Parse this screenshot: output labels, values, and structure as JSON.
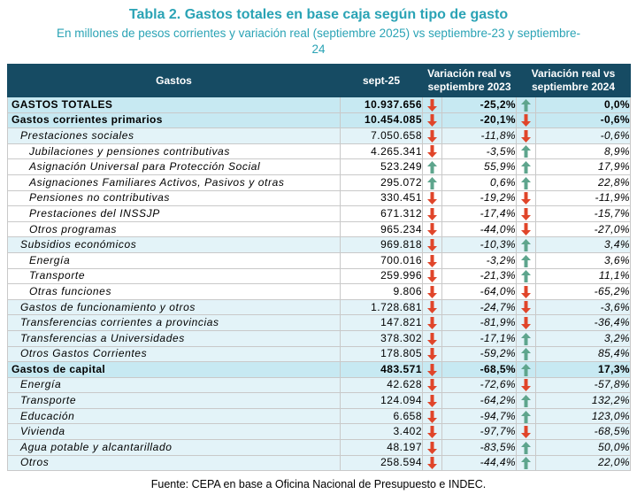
{
  "title": "Tabla 2. Gastos totales en base caja según tipo de gasto",
  "subtitle": "En millones de pesos corrientes y variación real (septiembre 2025) vs septiembre-23 y septiembre-24",
  "headers": {
    "gastos": "Gastos",
    "sept": "sept-25",
    "var23": "Variación real vs septiembre 2023",
    "var24": "Variación real vs septiembre 2024"
  },
  "colors": {
    "up": "#5ea58d",
    "down": "#e0452a",
    "header_bg": "#164b63"
  },
  "rows": [
    {
      "name": "GASTOS TOTALES",
      "value": "10.937.656",
      "dir23": "down",
      "var23": "-25,2%",
      "dir24": "up",
      "var24": "0,0%",
      "level": 0
    },
    {
      "name": "Gastos corrientes primarios",
      "value": "10.454.085",
      "dir23": "down",
      "var23": "-20,1%",
      "dir24": "down",
      "var24": "-0,6%",
      "level": 0
    },
    {
      "name": "Prestaciones sociales",
      "value": "7.050.658",
      "dir23": "down",
      "var23": "-11,8%",
      "dir24": "down",
      "var24": "-0,6%",
      "level": 1
    },
    {
      "name": "Jubilaciones y pensiones contributivas",
      "value": "4.265.341",
      "dir23": "down",
      "var23": "-3,5%",
      "dir24": "up",
      "var24": "8,9%",
      "level": 2
    },
    {
      "name": "Asignación Universal para Protección Social",
      "value": "523.249",
      "dir23": "up",
      "var23": "55,9%",
      "dir24": "up",
      "var24": "17,9%",
      "level": 2
    },
    {
      "name": "Asignaciones Familiares Activos, Pasivos y otras",
      "value": "295.072",
      "dir23": "up",
      "var23": "0,6%",
      "dir24": "up",
      "var24": "22,8%",
      "level": 2
    },
    {
      "name": "Pensiones no contributivas",
      "value": "330.451",
      "dir23": "down",
      "var23": "-19,2%",
      "dir24": "down",
      "var24": "-11,9%",
      "level": 2
    },
    {
      "name": "Prestaciones del INSSJP",
      "value": "671.312",
      "dir23": "down",
      "var23": "-17,4%",
      "dir24": "down",
      "var24": "-15,7%",
      "level": 2
    },
    {
      "name": "Otros programas",
      "value": "965.234",
      "dir23": "down",
      "var23": "-44,0%",
      "dir24": "down",
      "var24": "-27,0%",
      "level": 2
    },
    {
      "name": "Subsidios económicos",
      "value": "969.818",
      "dir23": "down",
      "var23": "-10,3%",
      "dir24": "up",
      "var24": "3,4%",
      "level": 1
    },
    {
      "name": "Energía",
      "value": "700.016",
      "dir23": "down",
      "var23": "-3,2%",
      "dir24": "up",
      "var24": "3,6%",
      "level": 2
    },
    {
      "name": "Transporte",
      "value": "259.996",
      "dir23": "down",
      "var23": "-21,3%",
      "dir24": "up",
      "var24": "11,1%",
      "level": 2
    },
    {
      "name": "Otras funciones",
      "value": "9.806",
      "dir23": "down",
      "var23": "-64,0%",
      "dir24": "down",
      "var24": "-65,2%",
      "level": 2
    },
    {
      "name": "Gastos de funcionamiento y otros",
      "value": "1.728.681",
      "dir23": "down",
      "var23": "-24,7%",
      "dir24": "down",
      "var24": "-3,6%",
      "level": 1
    },
    {
      "name": "Transferencias corrientes a provincias",
      "value": "147.821",
      "dir23": "down",
      "var23": "-81,9%",
      "dir24": "down",
      "var24": "-36,4%",
      "level": 1
    },
    {
      "name": "Transferencias a Universidades",
      "value": "378.302",
      "dir23": "down",
      "var23": "-17,1%",
      "dir24": "up",
      "var24": "3,2%",
      "level": 1
    },
    {
      "name": "Otros Gastos Corrientes",
      "value": "178.805",
      "dir23": "down",
      "var23": "-59,2%",
      "dir24": "up",
      "var24": "85,4%",
      "level": 1
    },
    {
      "name": "Gastos de capital",
      "value": "483.571",
      "dir23": "down",
      "var23": "-68,5%",
      "dir24": "up",
      "var24": "17,3%",
      "level": 0
    },
    {
      "name": "Energía",
      "value": "42.628",
      "dir23": "down",
      "var23": "-72,6%",
      "dir24": "down",
      "var24": "-57,8%",
      "level": 1
    },
    {
      "name": "Transporte",
      "value": "124.094",
      "dir23": "down",
      "var23": "-64,2%",
      "dir24": "up",
      "var24": "132,2%",
      "level": 1
    },
    {
      "name": "Educación",
      "value": "6.658",
      "dir23": "down",
      "var23": "-94,7%",
      "dir24": "up",
      "var24": "123,0%",
      "level": 1
    },
    {
      "name": "Vivienda",
      "value": "3.402",
      "dir23": "down",
      "var23": "-97,7%",
      "dir24": "down",
      "var24": "-68,5%",
      "level": 1
    },
    {
      "name": "Agua potable y alcantarillado",
      "value": "48.197",
      "dir23": "down",
      "var23": "-83,5%",
      "dir24": "up",
      "var24": "50,0%",
      "level": 1
    },
    {
      "name": "Otros",
      "value": "258.594",
      "dir23": "down",
      "var23": "-44,4%",
      "dir24": "up",
      "var24": "22,0%",
      "level": 1
    }
  ],
  "footer": "Fuente: CEPA en base a Oficina Nacional de Presupuesto e INDEC."
}
